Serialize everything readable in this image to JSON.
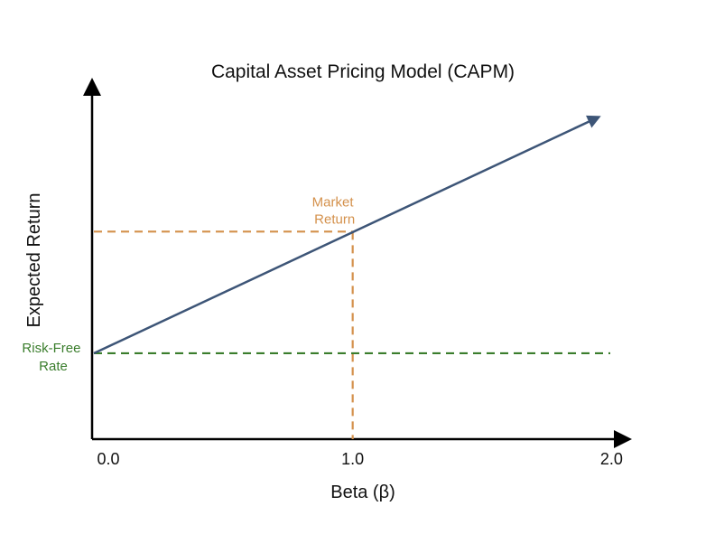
{
  "chart_data": {
    "type": "line",
    "title": "Capital Asset Pricing Model (CAPM)",
    "xlabel": "Beta (β)",
    "ylabel": "Expected Return",
    "xlim": [
      0,
      2.05
    ],
    "ylim": [
      0,
      1
    ],
    "x_ticks": [
      "0.0",
      "1.0",
      "2.0"
    ],
    "x_tick_values": [
      0,
      1,
      2
    ],
    "grid": false,
    "series": [
      {
        "x": [
          0,
          1,
          1.95
        ],
        "y": [
          0.24,
          0.58,
          0.9
        ],
        "color": "#3d5577",
        "style": "solid-arrow"
      }
    ],
    "reference_lines": {
      "risk_free": {
        "label": [
          "Risk-Free",
          "Rate"
        ],
        "y": 0.24,
        "color": "#3a7d2c"
      },
      "market_y": {
        "y": 0.58,
        "x_end": 1,
        "color": "#d4914c"
      },
      "market_x": {
        "label": [
          "Market",
          "Return"
        ],
        "x": 1,
        "y_end": 0.58,
        "color": "#d4914c"
      }
    }
  }
}
